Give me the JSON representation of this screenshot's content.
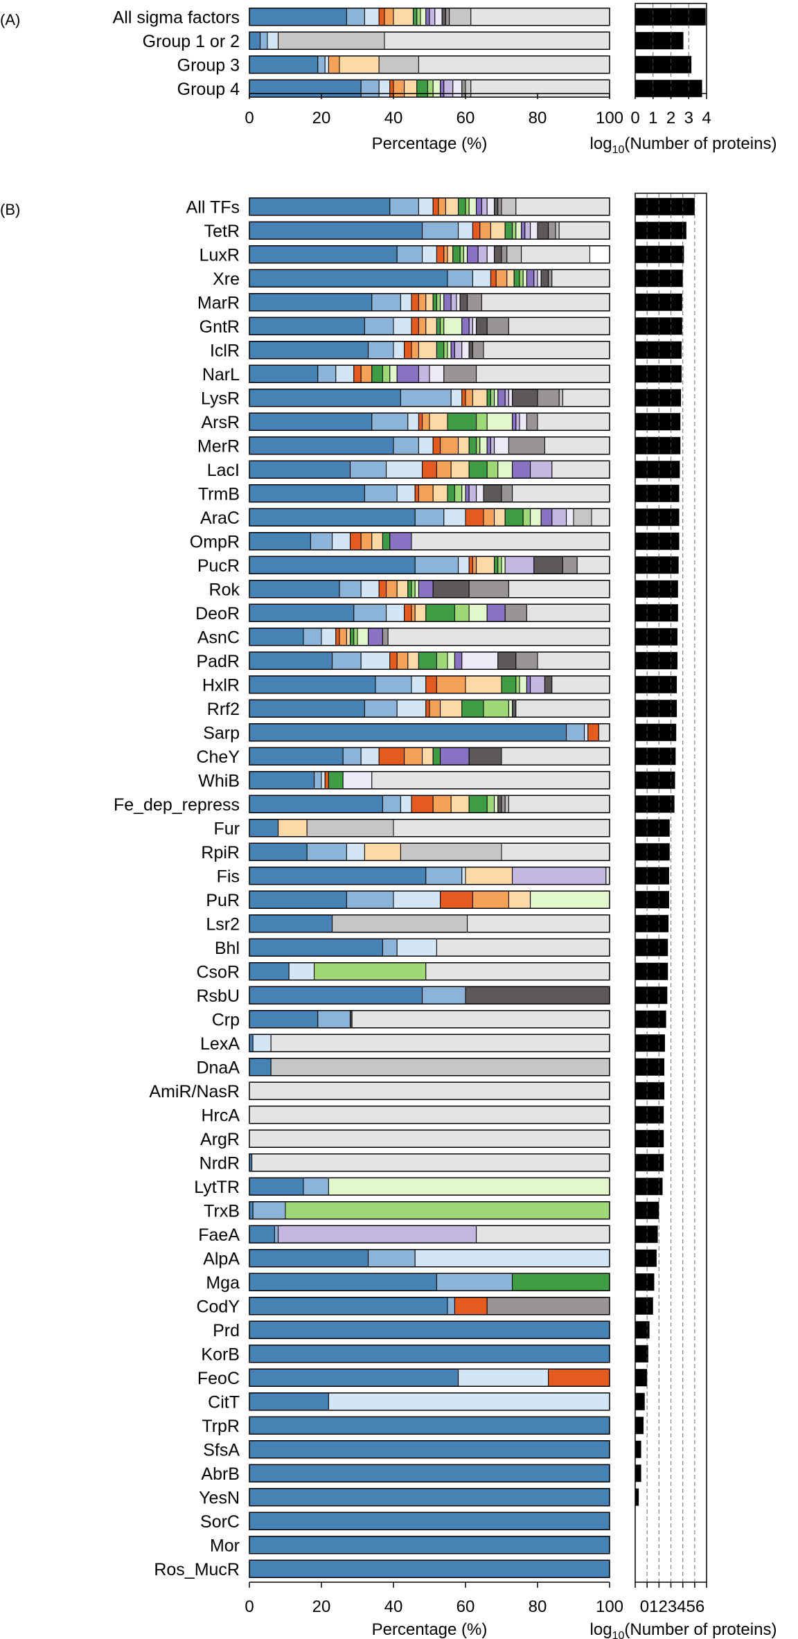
{
  "figure": {
    "panel_a_label": "(A)",
    "panel_b_label": "(B)"
  },
  "chart_data": [
    {
      "type": "bar",
      "stacked": true,
      "orientation": "horizontal",
      "panel": "A",
      "xlabel": "Percentage (%)",
      "xlim": [
        0,
        100
      ],
      "xticks": [
        0,
        20,
        40,
        60,
        80,
        100
      ],
      "segment_colors": [
        "#4682B4",
        "#8CB4D8",
        "#D2E6F5",
        "#E35B1E",
        "#F4A258",
        "#FDD9A5",
        "#3E9C45",
        "#9FD876",
        "#E3F7CC",
        "#8A72C2",
        "#C4B8E2",
        "#EDE9F7",
        "#5E5959",
        "#999595",
        "#C8C6C5",
        "#E4E4E4"
      ],
      "categories": [
        "All sigma factors",
        "Group 1 or 2",
        "Group 3",
        "Group 4"
      ],
      "series_values": [
        [
          27,
          5,
          4,
          1.5,
          2.5,
          5.5,
          1,
          1,
          1.5,
          1,
          1.5,
          2,
          1,
          1,
          6,
          38.5
        ],
        [
          3,
          2,
          3,
          0,
          0,
          0,
          0,
          0,
          0,
          0,
          0,
          0,
          0,
          0,
          29.5,
          62.5
        ],
        [
          19,
          2,
          1,
          0,
          3,
          11,
          0,
          0,
          0,
          0,
          0,
          0,
          0,
          0,
          11,
          53
        ],
        [
          31,
          5,
          3,
          1,
          3,
          3.5,
          3,
          1.5,
          2,
          1,
          2.5,
          2.5,
          0,
          1,
          1.5,
          39.5
        ]
      ]
    },
    {
      "type": "bar",
      "orientation": "horizontal",
      "panel": "A",
      "xlabel": "log10(Number of proteins)",
      "xlabel_main": "log",
      "xlabel_sub": "10",
      "xlabel_rest": "(Number of proteins)",
      "xlim": [
        0,
        4
      ],
      "xticks": [
        0,
        1,
        2,
        3,
        4
      ],
      "categories": [
        "All sigma factors",
        "Group 1 or 2",
        "Group 3",
        "Group 4"
      ],
      "values": [
        3.95,
        2.7,
        3.15,
        3.75
      ]
    },
    {
      "type": "bar",
      "stacked": true,
      "orientation": "horizontal",
      "panel": "B",
      "xlabel": "Percentage (%)",
      "xlim": [
        0,
        100
      ],
      "xticks": [
        0,
        20,
        40,
        60,
        80,
        100
      ],
      "segment_colors": [
        "#4682B4",
        "#8CB4D8",
        "#D2E6F5",
        "#E35B1E",
        "#F4A258",
        "#FDD9A5",
        "#3E9C45",
        "#9FD876",
        "#E3F7CC",
        "#8A72C2",
        "#C4B8E2",
        "#EDE9F7",
        "#5E5959",
        "#999595",
        "#C8C6C5",
        "#E4E4E4"
      ],
      "categories": [
        "All TFs",
        "TetR",
        "LuxR",
        "Xre",
        "MarR",
        "GntR",
        "IclR",
        "NarL",
        "LysR",
        "ArsR",
        "MerR",
        "LacI",
        "TrmB",
        "AraC",
        "OmpR",
        "PucR",
        "Rok",
        "DeoR",
        "AsnC",
        "PadR",
        "HxlR",
        "Rrf2",
        "Sarp",
        "CheY",
        "WhiB",
        "Fe_dep_repress",
        "Fur",
        "RpiR",
        "Fis",
        "PuR",
        "Lsr2",
        "Bhl",
        "CsoR",
        "RsbU",
        "Crp",
        "LexA",
        "DnaA",
        "AmiR/NasR",
        "HrcA",
        "ArgR",
        "NrdR",
        "LytTR",
        "TrxB",
        "FaeA",
        "AlpA",
        "Mga",
        "CodY",
        "Prd",
        "KorB",
        "FeoC",
        "CitT",
        "TrpR",
        "SfsA",
        "AbrB",
        "YesN",
        "SorC",
        "Mor",
        "Ros_MucR"
      ],
      "series_values": [
        [
          39,
          8,
          4,
          1.5,
          2,
          3.5,
          2,
          1,
          2,
          1.5,
          1.5,
          2,
          1,
          1,
          4,
          26
        ],
        [
          48,
          10,
          4,
          2,
          3,
          4,
          2,
          1,
          1.5,
          1,
          1.5,
          2,
          3,
          2,
          1,
          14
        ],
        [
          41,
          7,
          4,
          2,
          1,
          1.5,
          2,
          1,
          1,
          3,
          2.5,
          2,
          2,
          1.5,
          4,
          19
        ],
        [
          55,
          7,
          5,
          1.5,
          3,
          2,
          1.5,
          1,
          1,
          2,
          1,
          1,
          2,
          1,
          0,
          17
        ],
        [
          34,
          8,
          3,
          2,
          2,
          2,
          1,
          1,
          1,
          2,
          1.5,
          1,
          2,
          4,
          0,
          35.5
        ],
        [
          32,
          8,
          5,
          2,
          2,
          3,
          1,
          1,
          5,
          2,
          1,
          1,
          3,
          6,
          0,
          28
        ],
        [
          33,
          7,
          3,
          2,
          2,
          5,
          2,
          1,
          1,
          1,
          2,
          2,
          1,
          3,
          0,
          35
        ],
        [
          19,
          5,
          5,
          2,
          3,
          0,
          3,
          2,
          2,
          6,
          3,
          4,
          0,
          9,
          0,
          37
        ],
        [
          42,
          14,
          3,
          1,
          2,
          4,
          1,
          1,
          1,
          2,
          1,
          1,
          7,
          6,
          1,
          14
        ],
        [
          34,
          10,
          3,
          1,
          2,
          5,
          8,
          3,
          7,
          1,
          1,
          2,
          0,
          3,
          0,
          21
        ],
        [
          40,
          7,
          4,
          2,
          5,
          3,
          2,
          1,
          2,
          1,
          1,
          4,
          0,
          10,
          0,
          18
        ],
        [
          28,
          10,
          10,
          4,
          4,
          5,
          5,
          3,
          4,
          5,
          6,
          0,
          0,
          0,
          0,
          16
        ],
        [
          32,
          9,
          5,
          1,
          4,
          4,
          2,
          2,
          1,
          1,
          2,
          2,
          5,
          3,
          0,
          27
        ],
        [
          46,
          8,
          6,
          5,
          3,
          3,
          5,
          2,
          3,
          3,
          4,
          2,
          0,
          0,
          5,
          5
        ],
        [
          17,
          6,
          5,
          3,
          3,
          3,
          2,
          0,
          0,
          6,
          0,
          0,
          0,
          0,
          0,
          55
        ],
        [
          46,
          12,
          3,
          1,
          1,
          5,
          1,
          1,
          1,
          0,
          8,
          0,
          8,
          4,
          0,
          9
        ],
        [
          25,
          6,
          5,
          2,
          3,
          3,
          1,
          1,
          1,
          4,
          0,
          0,
          10,
          11,
          0,
          28
        ],
        [
          29,
          9,
          5,
          2,
          1,
          3,
          8,
          4,
          5,
          5,
          0,
          0,
          0,
          6,
          0,
          23
        ],
        [
          15,
          5,
          4,
          1,
          2,
          1,
          1,
          1,
          3,
          4,
          0,
          0,
          0,
          1.5,
          0,
          61.5
        ],
        [
          23,
          8,
          8,
          2,
          3,
          3,
          5,
          3,
          2,
          2,
          0,
          10,
          5,
          6,
          0,
          20
        ],
        [
          35,
          10,
          4,
          3,
          8,
          10,
          4,
          1,
          2,
          1,
          4,
          0,
          2,
          0,
          0,
          16
        ],
        [
          32,
          9,
          8,
          1,
          3,
          6,
          6,
          7,
          1,
          0,
          0,
          0,
          1,
          0,
          0,
          26
        ],
        [
          88,
          5,
          1,
          3,
          0,
          0,
          0,
          0,
          0,
          0,
          0,
          0,
          0,
          0,
          0,
          3
        ],
        [
          26,
          5,
          5,
          7,
          5,
          3,
          2,
          0,
          0,
          8,
          0,
          0,
          9,
          0,
          0,
          30
        ],
        [
          18,
          2,
          1,
          1,
          0,
          0,
          4,
          0,
          0,
          0,
          0,
          8,
          0,
          0,
          0,
          66
        ],
        [
          37,
          5,
          3,
          6,
          5,
          5,
          5,
          2,
          1,
          0,
          0,
          0,
          1,
          1,
          1,
          28
        ],
        [
          8,
          0,
          0,
          0,
          0,
          8,
          0,
          0,
          0,
          0,
          0,
          0,
          0,
          0,
          24,
          60
        ],
        [
          16,
          11,
          5,
          0,
          0,
          10,
          0,
          0,
          0,
          0,
          0,
          0,
          0,
          0,
          28,
          30
        ],
        [
          49,
          10,
          1,
          0,
          0,
          13,
          0,
          0,
          0,
          0,
          26,
          0,
          0,
          0,
          0,
          1
        ],
        [
          27,
          13,
          13,
          9,
          10,
          6,
          0,
          0,
          22,
          0,
          0,
          0,
          0,
          0,
          0,
          0
        ],
        [
          23,
          0,
          0,
          0,
          0,
          0,
          0,
          0,
          0,
          0,
          0,
          0,
          0,
          0,
          37.5,
          39.5
        ],
        [
          37,
          4,
          11,
          0,
          0,
          0,
          0,
          0,
          0,
          0,
          0,
          0,
          0,
          0,
          0,
          48
        ],
        [
          11,
          0,
          7,
          0,
          0,
          0,
          0,
          31,
          0,
          0,
          0,
          0,
          0,
          0,
          0,
          51
        ],
        [
          48,
          12,
          0,
          0,
          0,
          0,
          0,
          0,
          0,
          0,
          0,
          0,
          40,
          0,
          0,
          0
        ],
        [
          19,
          9,
          0,
          0,
          0,
          0,
          0,
          0,
          0,
          0,
          0,
          0,
          0.5,
          0,
          0,
          71.5
        ],
        [
          1,
          0,
          5,
          0,
          0,
          0,
          0,
          0,
          0,
          0,
          0,
          0,
          0,
          0,
          0,
          94
        ],
        [
          6,
          0,
          0,
          0,
          0,
          0,
          0,
          0,
          0,
          0,
          0,
          0,
          0,
          0,
          94,
          0
        ],
        [
          0,
          0,
          0,
          0,
          0,
          0,
          0,
          0,
          0,
          0,
          0,
          0,
          0,
          0,
          0,
          100
        ],
        [
          0,
          0,
          0,
          0,
          0,
          0,
          0,
          0,
          0,
          0,
          0,
          0,
          0,
          0,
          0,
          100
        ],
        [
          0,
          0,
          0,
          0,
          0,
          0,
          0,
          0,
          0,
          0,
          0,
          0,
          0,
          0,
          0,
          100
        ],
        [
          0.7,
          0,
          0,
          0,
          0,
          0,
          0,
          0,
          0,
          0,
          0,
          0,
          0,
          0,
          0,
          99.3
        ],
        [
          15,
          7,
          0,
          0,
          0,
          0,
          0,
          0,
          78,
          0,
          0,
          0,
          0,
          0,
          0,
          0
        ],
        [
          1,
          9,
          0,
          0,
          0,
          0,
          0,
          90,
          0,
          0,
          0,
          0,
          0,
          0,
          0,
          0
        ],
        [
          7,
          1,
          0,
          0,
          0,
          0,
          0,
          0,
          0,
          0,
          55,
          0,
          0,
          0,
          0,
          37
        ],
        [
          33,
          13,
          54,
          0,
          0,
          0,
          0,
          0,
          0,
          0,
          0,
          0,
          0,
          0,
          0,
          0
        ],
        [
          52,
          21,
          0,
          0,
          0,
          0,
          27,
          0,
          0,
          0,
          0,
          0,
          0,
          0,
          0,
          0
        ],
        [
          55,
          2,
          0,
          9,
          0,
          0,
          0,
          0,
          0,
          0,
          0,
          0,
          0,
          34,
          0,
          0
        ],
        [
          100,
          0,
          0,
          0,
          0,
          0,
          0,
          0,
          0,
          0,
          0,
          0,
          0,
          0,
          0,
          0
        ],
        [
          100,
          0,
          0,
          0,
          0,
          0,
          0,
          0,
          0,
          0,
          0,
          0,
          0,
          0,
          0,
          0
        ],
        [
          58,
          0,
          25,
          17,
          0,
          0,
          0,
          0,
          0,
          0,
          0,
          0,
          0,
          0,
          0,
          0
        ],
        [
          22,
          0,
          78,
          0,
          0,
          0,
          0,
          0,
          0,
          0,
          0,
          0,
          0,
          0,
          0,
          0
        ],
        [
          100,
          0,
          0,
          0,
          0,
          0,
          0,
          0,
          0,
          0,
          0,
          0,
          0,
          0,
          0,
          0
        ],
        [
          100,
          0,
          0,
          0,
          0,
          0,
          0,
          0,
          0,
          0,
          0,
          0,
          0,
          0,
          0,
          0
        ],
        [
          100,
          0,
          0,
          0,
          0,
          0,
          0,
          0,
          0,
          0,
          0,
          0,
          0,
          0,
          0,
          0
        ],
        [
          100,
          0,
          0,
          0,
          0,
          0,
          0,
          0,
          0,
          0,
          0,
          0,
          0,
          0,
          0,
          0
        ],
        [
          100,
          0,
          0,
          0,
          0,
          0,
          0,
          0,
          0,
          0,
          0,
          0,
          0,
          0,
          0,
          0
        ],
        [
          100,
          0,
          0,
          0,
          0,
          0,
          0,
          0,
          0,
          0,
          0,
          0,
          0,
          0,
          0,
          0
        ],
        [
          100,
          0,
          0,
          0,
          0,
          0,
          0,
          0,
          0,
          0,
          0,
          0,
          0,
          0,
          0,
          0
        ]
      ]
    },
    {
      "type": "bar",
      "orientation": "horizontal",
      "panel": "B",
      "xlabel": "log10(Number of proteins)",
      "xlabel_main": "log",
      "xlabel_sub": "10",
      "xlabel_rest": "(Number of proteins)",
      "xlim": [
        0,
        6
      ],
      "xticks": [
        0,
        1,
        2,
        3,
        4,
        5,
        6
      ],
      "tick_labels_joined": "0123456",
      "categories": [
        "All TFs",
        "TetR",
        "LuxR",
        "Xre",
        "MarR",
        "GntR",
        "IclR",
        "NarL",
        "LysR",
        "ArsR",
        "MerR",
        "LacI",
        "TrmB",
        "AraC",
        "OmpR",
        "PucR",
        "Rok",
        "DeoR",
        "AsnC",
        "PadR",
        "HxlR",
        "Rrf2",
        "Sarp",
        "CheY",
        "WhiB",
        "Fe_dep_repress",
        "Fur",
        "RpiR",
        "Fis",
        "PuR",
        "Lsr2",
        "Bhl",
        "CsoR",
        "RsbU",
        "Crp",
        "LexA",
        "DnaA",
        "AmiR/NasR",
        "HrcA",
        "ArgR",
        "NrdR",
        "LytTR",
        "TrxB",
        "FaeA",
        "AlpA",
        "Mga",
        "CodY",
        "Prd",
        "KorB",
        "FeoC",
        "CitT",
        "TrpR",
        "SfsA",
        "AbrB",
        "YesN",
        "SorC",
        "Mor",
        "Ros_MucR"
      ],
      "values": [
        5.0,
        4.3,
        4.1,
        4.0,
        3.95,
        3.95,
        3.9,
        3.9,
        3.85,
        3.8,
        3.8,
        3.75,
        3.7,
        3.7,
        3.7,
        3.65,
        3.6,
        3.6,
        3.55,
        3.55,
        3.5,
        3.5,
        3.45,
        3.4,
        3.35,
        3.3,
        2.9,
        2.9,
        2.85,
        2.85,
        2.8,
        2.75,
        2.75,
        2.7,
        2.6,
        2.5,
        2.45,
        2.45,
        2.4,
        2.4,
        2.4,
        2.3,
        2.0,
        1.9,
        1.8,
        1.6,
        1.5,
        1.2,
        1.1,
        1.0,
        0.8,
        0.7,
        0.5,
        0.5,
        0.3,
        0.0,
        0.0,
        0.0
      ]
    }
  ]
}
